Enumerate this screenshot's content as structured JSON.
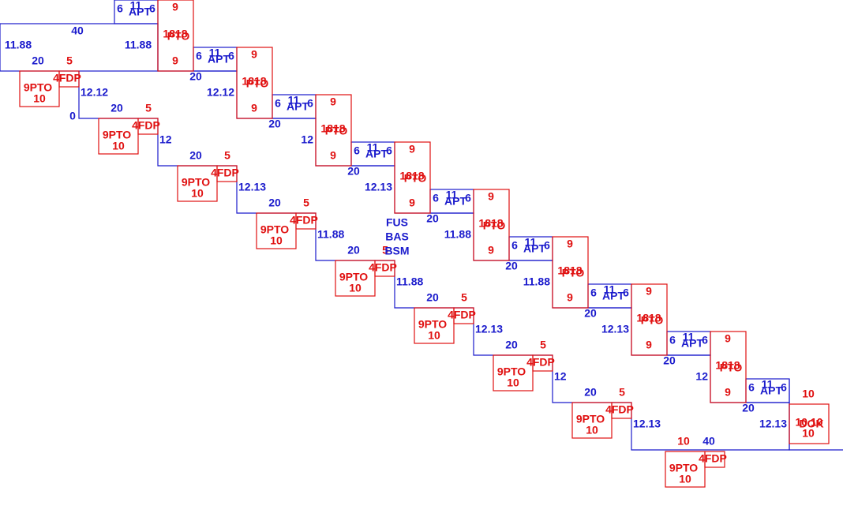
{
  "top_box": {
    "width": "40",
    "left": "11.88",
    "right": "11.88"
  },
  "zero_label": "0",
  "apt_units": [
    {
      "a": "6",
      "b": "11",
      "label": "APT",
      "c": "6"
    },
    {
      "a": "6",
      "b": "11",
      "label": "APT",
      "c": "6"
    },
    {
      "a": "6",
      "b": "11",
      "label": "APT",
      "c": "6"
    },
    {
      "a": "6",
      "b": "11",
      "label": "APT",
      "c": "6"
    },
    {
      "a": "6",
      "b": "11",
      "label": "APT",
      "c": "6"
    },
    {
      "a": "6",
      "b": "11",
      "label": "APT",
      "c": "6"
    },
    {
      "a": "6",
      "b": "11",
      "label": "APT",
      "c": "6"
    },
    {
      "a": "6",
      "b": "11",
      "label": "APT",
      "c": "6"
    },
    {
      "a": "6",
      "b": "11",
      "label": "APT",
      "c": "6"
    }
  ],
  "pto_tall": [
    {
      "top": "9",
      "code": "1818",
      "label": "PTO",
      "bottom": "9"
    },
    {
      "top": "9",
      "code": "1818",
      "label": "PTO",
      "bottom": "9"
    },
    {
      "top": "9",
      "code": "1818",
      "label": "PTO",
      "bottom": "9"
    },
    {
      "top": "9",
      "code": "1818",
      "label": "PTO",
      "bottom": "9"
    },
    {
      "top": "9",
      "code": "1818",
      "label": "PTO",
      "bottom": "9"
    },
    {
      "top": "9",
      "code": "1818",
      "label": "PTO",
      "bottom": "9"
    },
    {
      "top": "9",
      "code": "1818",
      "label": "PTO",
      "bottom": "9"
    },
    {
      "top": "9",
      "code": "1818",
      "label": "PTO",
      "bottom": "9"
    }
  ],
  "upper_dims": [
    {
      "width": "20",
      "height": "12.12"
    },
    {
      "width": "20",
      "height": "12"
    },
    {
      "width": "20",
      "height": "12.13"
    },
    {
      "width": "20",
      "height": "11.88"
    },
    {
      "width": "20",
      "height": "11.88"
    },
    {
      "width": "20",
      "height": "12.13"
    },
    {
      "width": "20",
      "height": "12"
    },
    {
      "width": "20",
      "height": "12.13"
    }
  ],
  "lower_dims": [
    {
      "width": "20",
      "offset": "5",
      "height": "12.12"
    },
    {
      "width": "20",
      "offset": "5",
      "height": "12"
    },
    {
      "width": "20",
      "offset": "5",
      "height": "12.13"
    },
    {
      "width": "20",
      "offset": "5",
      "height": "11.88"
    },
    {
      "width": "20",
      "offset": "5",
      "height": "11.88"
    },
    {
      "width": "20",
      "offset": "5",
      "height": "12.13"
    },
    {
      "width": "20",
      "offset": "5",
      "height": "12"
    },
    {
      "width": "20",
      "offset": "5",
      "height": "12.13"
    }
  ],
  "pto_units": [
    {
      "label": "9PTO",
      "value": "10",
      "tag": "4FDP"
    },
    {
      "label": "9PTO",
      "value": "10",
      "tag": "4FDP"
    },
    {
      "label": "9PTO",
      "value": "10",
      "tag": "4FDP"
    },
    {
      "label": "9PTO",
      "value": "10",
      "tag": "4FDP"
    },
    {
      "label": "9PTO",
      "value": "10",
      "tag": "4FDP"
    },
    {
      "label": "9PTO",
      "value": "10",
      "tag": "4FDP"
    },
    {
      "label": "9PTO",
      "value": "10",
      "tag": "4FDP"
    },
    {
      "label": "9PTO",
      "value": "10",
      "tag": "4FDP"
    },
    {
      "label": "9PTO",
      "value": "10",
      "tag": "4FDP"
    }
  ],
  "center_labels": [
    "FUS",
    "BAS",
    "BSM"
  ],
  "bottom_dims": [
    "10",
    "40"
  ],
  "dok": {
    "top": "10",
    "pair": "10 10",
    "label": "DOK",
    "bottom": "10"
  }
}
